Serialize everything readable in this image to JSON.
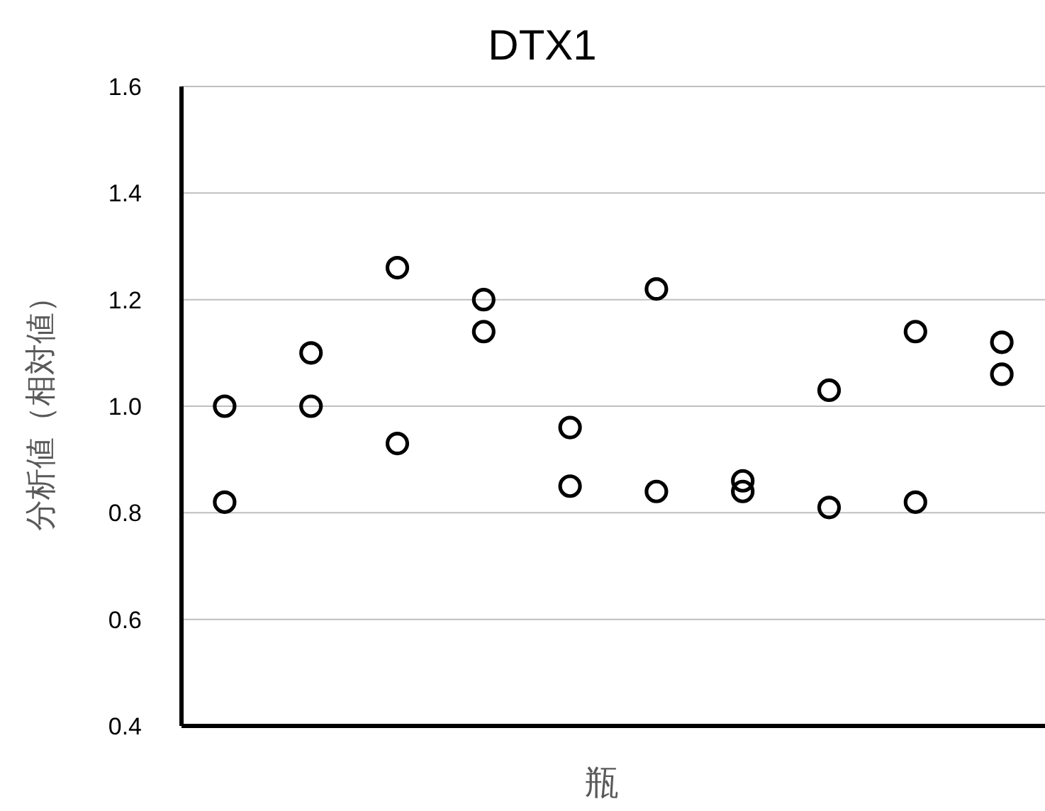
{
  "chart_data": {
    "type": "scatter",
    "title": "DTX1",
    "xlabel": "瓶",
    "ylabel": "分析値（相対値）",
    "categories": [
      null,
      null,
      null,
      null,
      null,
      null,
      null,
      null,
      null,
      null
    ],
    "series": [
      {
        "color": "#000000",
        "values": [
          1.0,
          1.1,
          1.26,
          1.2,
          0.96,
          1.22,
          0.86,
          1.03,
          1.14,
          1.12
        ]
      },
      {
        "color": "#000000",
        "values": [
          0.82,
          1.0,
          0.93,
          1.14,
          0.85,
          0.84,
          0.84,
          0.81,
          0.82,
          1.06
        ]
      }
    ],
    "ylim": [
      0.4,
      1.6
    ],
    "yticks": [
      0.4,
      0.6,
      0.8,
      {
        "value": 1.0,
        "label": "1.0"
      },
      1.2,
      1.4,
      1.6
    ],
    "grid": "y",
    "marker": "circle"
  }
}
